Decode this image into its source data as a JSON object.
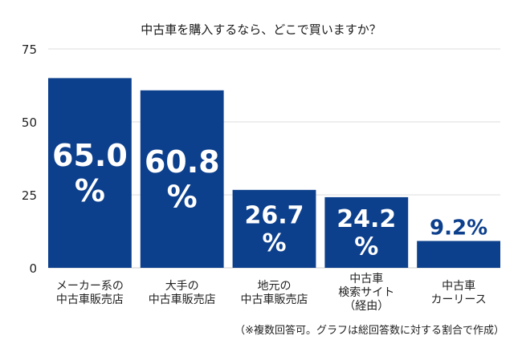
{
  "chart_data": {
    "type": "bar",
    "title": "中古車を購入するなら、どこで買いますか？",
    "categories": [
      [
        "メーカー系の",
        "中古車販売店"
      ],
      [
        "大手の",
        "中古車販売店"
      ],
      [
        "地元の",
        "中古車販売店"
      ],
      [
        "中古車",
        "検索サイト",
        "（経由）"
      ],
      [
        "中古車",
        "カーリース"
      ]
    ],
    "values": [
      65.0,
      60.8,
      26.7,
      24.2,
      9.2
    ],
    "data_labels": [
      [
        "65.0",
        "%"
      ],
      [
        "60.8",
        "%"
      ],
      [
        "26.7",
        "%"
      ],
      [
        "24.2",
        "%"
      ],
      [
        "9.2%"
      ]
    ],
    "ylim": [
      0,
      75
    ],
    "yticks": [
      "0",
      "25",
      "50",
      "75"
    ],
    "ytick_values": [
      0,
      25,
      50,
      75
    ],
    "xlabel": "",
    "ylabel": "",
    "grid": true,
    "legend": "none",
    "bar_color": "#0c3f8c",
    "grid_color": "#dddddd",
    "note": "（※複数回答可。グラフは総回答数に対する割合で作成）"
  }
}
